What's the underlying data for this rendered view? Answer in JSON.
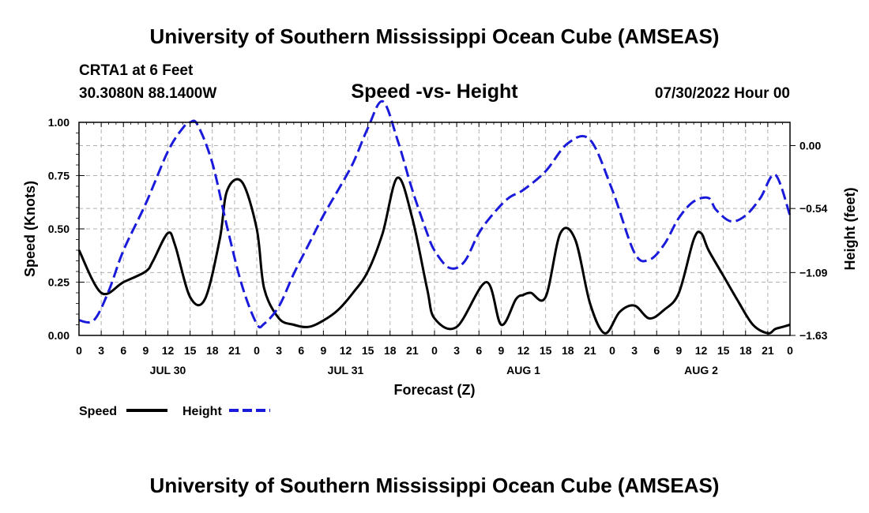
{
  "header": {
    "title": "University of Southern Mississippi Ocean Cube (AMSEAS)",
    "station": "CRTA1 at 6 Feet",
    "coords": "30.3080N  88.1400W",
    "chart_title": "Speed -vs- Height",
    "datetime": "07/30/2022 Hour 00"
  },
  "footer": {
    "title": "University of Southern Mississippi Ocean Cube (AMSEAS)"
  },
  "colors": {
    "speed": "#000000",
    "height": "#1a1adb",
    "grid": "#b0b0b0"
  },
  "chart_data": {
    "type": "line",
    "title": "Speed -vs- Height",
    "xlabel": "Forecast (Z)",
    "ylabel": "Speed (Knots)",
    "y2label": "Height (feet)",
    "grid": true,
    "legend_position": "bottom-left",
    "xlim": [
      0,
      96
    ],
    "ylim": [
      0,
      1.0
    ],
    "y2lim": [
      -1.63,
      0.2
    ],
    "yticks": [
      0,
      0.25,
      0.5,
      0.75,
      1.0
    ],
    "ytick_labels": [
      "0.00",
      "0.25",
      "0.50",
      "0.75",
      "1.00"
    ],
    "y2ticks": [
      0.0,
      -0.54,
      -1.09,
      -1.63
    ],
    "y2tick_labels": [
      "0.00",
      "-0.54",
      "-1.09",
      "-1.63"
    ],
    "xtick_hours": [
      0,
      3,
      6,
      9,
      12,
      15,
      18,
      21,
      24,
      27,
      30,
      33,
      36,
      39,
      42,
      45,
      48,
      51,
      54,
      57,
      60,
      63,
      66,
      69,
      72,
      75,
      78,
      81,
      84,
      87,
      90,
      93,
      96
    ],
    "xtick_labels": [
      "0",
      "3",
      "6",
      "9",
      "12",
      "15",
      "18",
      "21",
      "0",
      "3",
      "6",
      "9",
      "12",
      "15",
      "18",
      "21",
      "0",
      "3",
      "6",
      "9",
      "12",
      "15",
      "18",
      "21",
      "0",
      "3",
      "6",
      "9",
      "12",
      "15",
      "18",
      "21",
      "0"
    ],
    "date_labels": [
      {
        "label": "JUL 30",
        "hour": 12
      },
      {
        "label": "JUL 31",
        "hour": 36
      },
      {
        "label": "AUG 1",
        "hour": 60
      },
      {
        "label": "AUG 2",
        "hour": 84
      }
    ],
    "series": [
      {
        "name": "Speed",
        "axis": "left",
        "style": "solid",
        "x": [
          0,
          3,
          6,
          9,
          10,
          12,
          13,
          15,
          17,
          19,
          20,
          22,
          24,
          25,
          27,
          29,
          31,
          33,
          35,
          37,
          39,
          41,
          43,
          45,
          47,
          48,
          51,
          55,
          57,
          59,
          60,
          61,
          63,
          65,
          67,
          69,
          71,
          73,
          75,
          77,
          79,
          81,
          83,
          84,
          85,
          87,
          89,
          91,
          93,
          94,
          95,
          96
        ],
        "values": [
          0.4,
          0.2,
          0.25,
          0.3,
          0.35,
          0.48,
          0.42,
          0.18,
          0.17,
          0.45,
          0.68,
          0.72,
          0.5,
          0.22,
          0.08,
          0.05,
          0.04,
          0.07,
          0.12,
          0.2,
          0.3,
          0.48,
          0.74,
          0.55,
          0.22,
          0.08,
          0.04,
          0.25,
          0.05,
          0.17,
          0.19,
          0.2,
          0.18,
          0.48,
          0.45,
          0.15,
          0.01,
          0.11,
          0.14,
          0.08,
          0.12,
          0.2,
          0.45,
          0.48,
          0.4,
          0.28,
          0.16,
          0.05,
          0.01,
          0.03,
          0.04,
          0.05
        ]
      },
      {
        "name": "Height",
        "axis": "right",
        "style": "dashed",
        "x": [
          0,
          2,
          4,
          6,
          9,
          12,
          14,
          15,
          16,
          18,
          20,
          22,
          24,
          25,
          27,
          29,
          31,
          33,
          35,
          37,
          39,
          41,
          43,
          45,
          47,
          48,
          50,
          52,
          54,
          56,
          58,
          60,
          63,
          66,
          69,
          72,
          75,
          77,
          79,
          81,
          83,
          85,
          86,
          88,
          90,
          92,
          94,
          96
        ],
        "values": [
          -1.5,
          -1.5,
          -1.25,
          -0.9,
          -0.5,
          -0.05,
          0.15,
          0.2,
          0.18,
          -0.15,
          -0.7,
          -1.2,
          -1.53,
          -1.53,
          -1.38,
          -1.1,
          -0.85,
          -0.6,
          -0.38,
          -0.15,
          0.15,
          0.38,
          0.05,
          -0.38,
          -0.75,
          -0.9,
          -1.05,
          -1.0,
          -0.75,
          -0.58,
          -0.45,
          -0.38,
          -0.22,
          0.02,
          0.05,
          -0.38,
          -0.92,
          -0.98,
          -0.85,
          -0.62,
          -0.48,
          -0.45,
          -0.55,
          -0.65,
          -0.6,
          -0.45,
          -0.25,
          -0.6
        ]
      }
    ]
  }
}
